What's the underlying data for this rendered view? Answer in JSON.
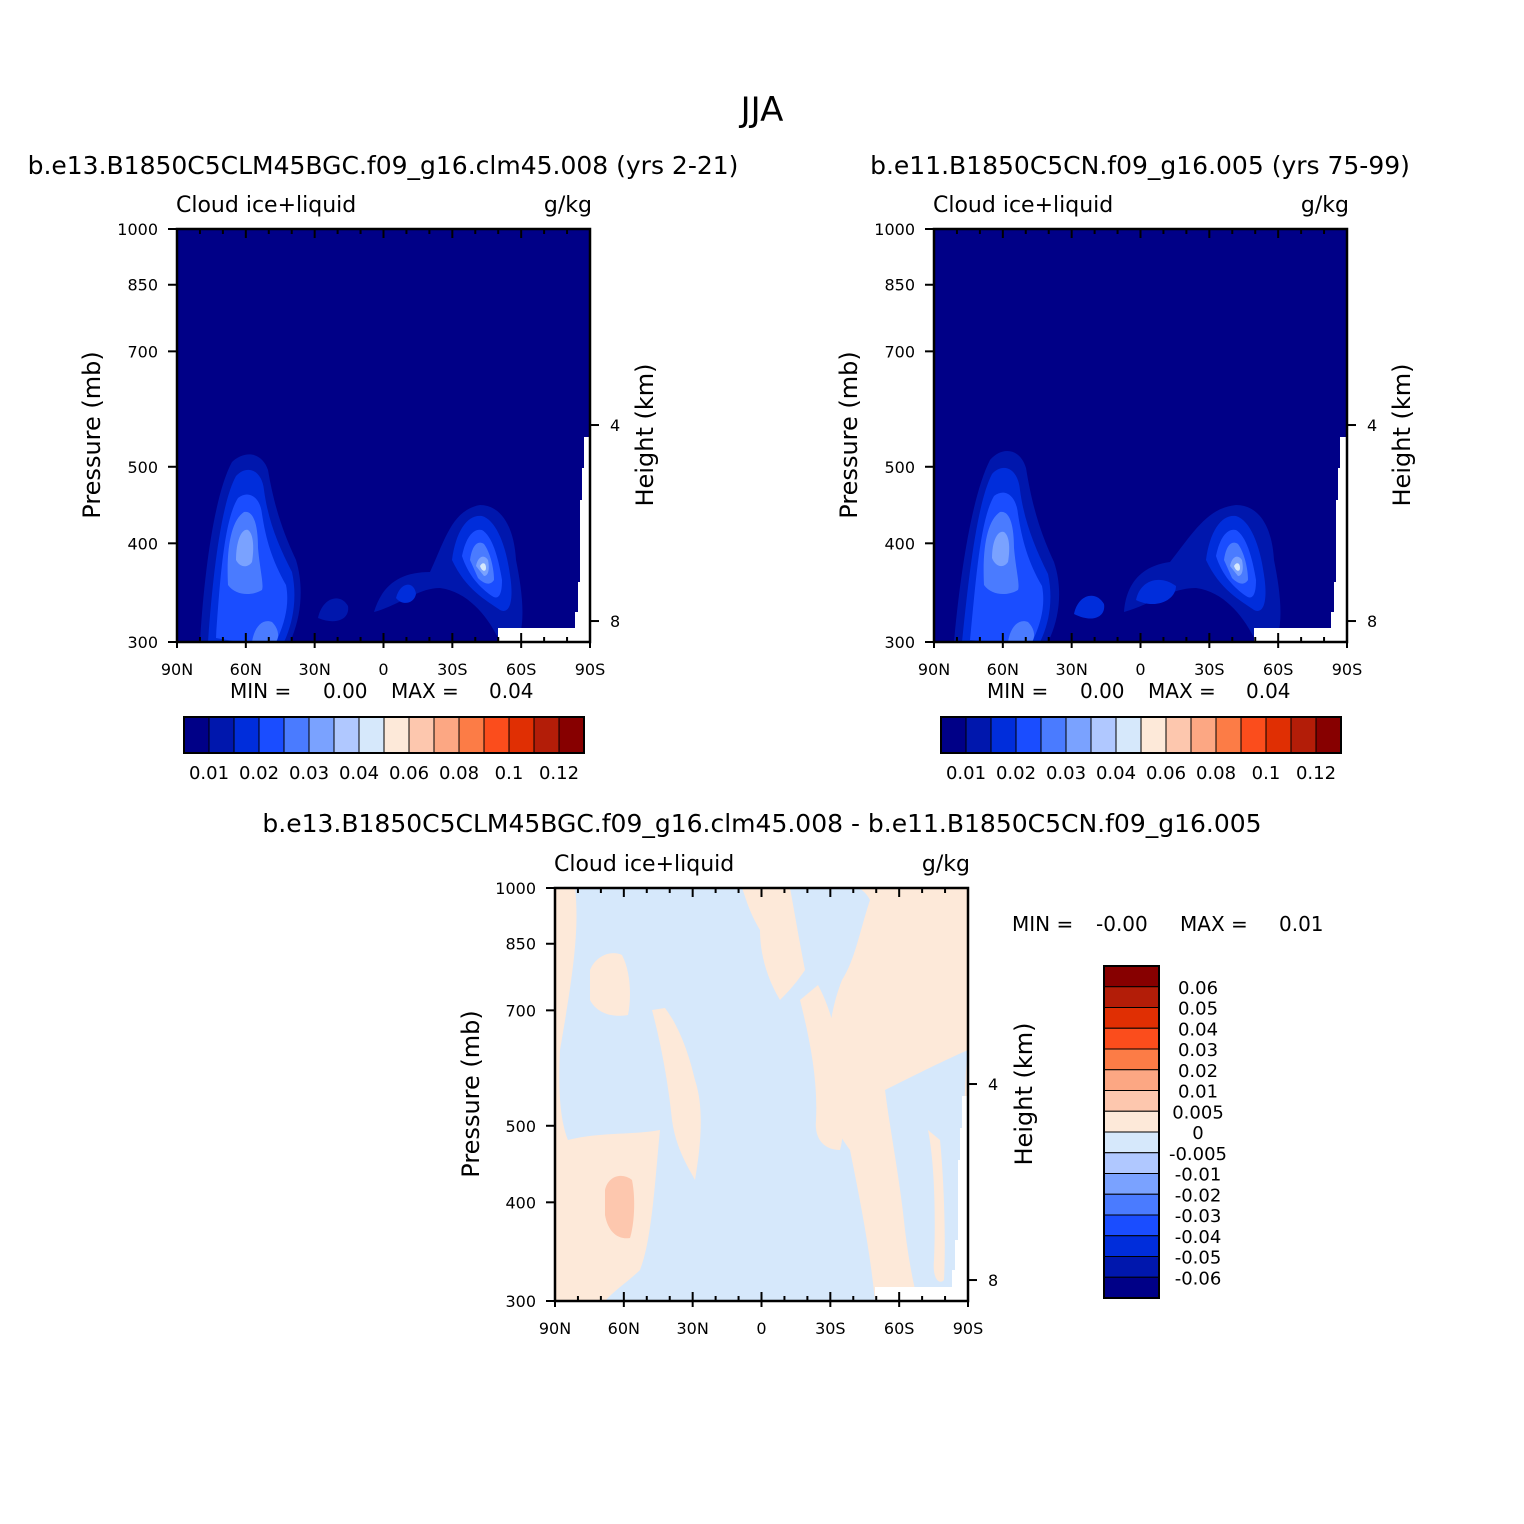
{
  "page_title": "JJA",
  "colors": {
    "neg": [
      "#000087",
      "#0017ad",
      "#002ddb",
      "#1a4dff",
      "#4a7bff",
      "#7aa2ff",
      "#b0c8ff",
      "#d6e8fb"
    ],
    "pos": [
      "#fde9d9",
      "#fdc7ae",
      "#fca783",
      "#fc7c46",
      "#fb4d1c",
      "#e02f03",
      "#b31d08",
      "#870000"
    ],
    "white": "#ffffff"
  },
  "chart_data": [
    {
      "type": "heatmap",
      "title": "b.e13.B1850C5CLM45BGC.f09_g16.clm45.008 (yrs 2-21)",
      "variable": "Cloud ice+liquid",
      "units": "g/kg",
      "ylabel": "Pressure (mb)",
      "ylabel_right": "Height (km)",
      "x_ticks": [
        "90N",
        "60N",
        "30N",
        "0",
        "30S",
        "60S",
        "90S"
      ],
      "y_ticks": [
        "300",
        "400",
        "500",
        "700",
        "850",
        "1000"
      ],
      "y_ticks_right": [
        "8",
        "4"
      ],
      "min_label": "MIN =",
      "min_value": "0.00",
      "max_label": "MAX =",
      "max_value": "0.04",
      "colorbar_labels": [
        "0.01",
        "0.02",
        "0.03",
        "0.04",
        "0.06",
        "0.08",
        "0.1",
        "0.12"
      ],
      "ylim": [
        1000,
        300
      ]
    },
    {
      "type": "heatmap",
      "title": "b.e11.B1850C5CN.f09_g16.005 (yrs 75-99)",
      "variable": "Cloud ice+liquid",
      "units": "g/kg",
      "ylabel": "Pressure (mb)",
      "ylabel_right": "Height (km)",
      "x_ticks": [
        "90N",
        "60N",
        "30N",
        "0",
        "30S",
        "60S",
        "90S"
      ],
      "y_ticks": [
        "300",
        "400",
        "500",
        "700",
        "850",
        "1000"
      ],
      "y_ticks_right": [
        "8",
        "4"
      ],
      "min_label": "MIN =",
      "min_value": "0.00",
      "max_label": "MAX =",
      "max_value": "0.04",
      "colorbar_labels": [
        "0.01",
        "0.02",
        "0.03",
        "0.04",
        "0.06",
        "0.08",
        "0.1",
        "0.12"
      ],
      "ylim": [
        1000,
        300
      ]
    },
    {
      "type": "heatmap",
      "title": "b.e13.B1850C5CLM45BGC.f09_g16.clm45.008 - b.e11.B1850C5CN.f09_g16.005",
      "variable": "Cloud ice+liquid",
      "units": "g/kg",
      "ylabel": "Pressure (mb)",
      "ylabel_right": "Height (km)",
      "x_ticks": [
        "90N",
        "60N",
        "30N",
        "0",
        "30S",
        "60S",
        "90S"
      ],
      "y_ticks": [
        "300",
        "400",
        "500",
        "700",
        "850",
        "1000"
      ],
      "y_ticks_right": [
        "8",
        "4"
      ],
      "min_label": "MIN =",
      "min_value": "-0.00",
      "max_label": "MAX =",
      "max_value": "0.01",
      "colorbar_labels": [
        "0.06",
        "0.05",
        "0.04",
        "0.03",
        "0.02",
        "0.01",
        "0.005",
        "0",
        "-0.005",
        "-0.01",
        "-0.02",
        "-0.03",
        "-0.04",
        "-0.05",
        "-0.06"
      ],
      "ylim": [
        1000,
        300
      ]
    }
  ]
}
